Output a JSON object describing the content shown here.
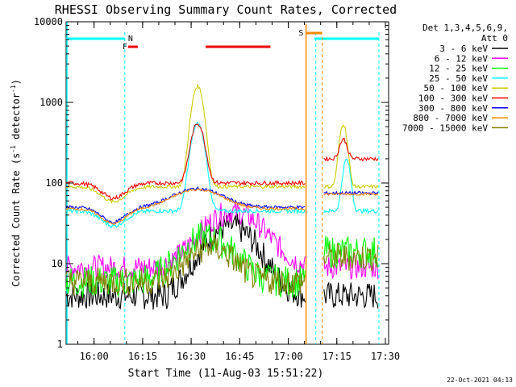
{
  "chart_data": {
    "type": "line",
    "title": "RHESSI Observing Summary Count Rates, Corrected",
    "xlabel": "Start Time (11-Aug-03 15:51:22)",
    "ylabel_main": "Corrected Count Rate (s",
    "ylabel_sup1": "-1",
    "ylabel_mid": " detector",
    "ylabel_sup2": "-1",
    "ylabel_end": ")",
    "y_scale": "log",
    "ylim": [
      1,
      10000
    ],
    "xlim": [
      "15:51:22",
      "17:31:00"
    ],
    "x_tick_labels": [
      "16:00",
      "16:15",
      "16:30",
      "16:45",
      "17:00",
      "17:15",
      "17:30"
    ],
    "y_tick_labels": [
      "1",
      "10",
      "100",
      "1000",
      "10000"
    ],
    "legend_header": [
      "Det 1,3,4,5,6,9,",
      "Att 0"
    ],
    "legend_placement": "right",
    "series": [
      {
        "name": "3 - 6 keV",
        "color": "#000000"
      },
      {
        "name": "6 - 12 keV",
        "color": "#ff00ff"
      },
      {
        "name": "12 - 25 keV",
        "color": "#00ff00"
      },
      {
        "name": "25 - 50 keV",
        "color": "#00ffff"
      },
      {
        "name": "50 - 100 keV",
        "color": "#cccc00"
      },
      {
        "name": "100 - 300 keV",
        "color": "#ee0000"
      },
      {
        "name": "300 - 800 keV",
        "color": "#0000ff"
      },
      {
        "name": "800 - 7000 keV",
        "color": "#ff8800"
      },
      {
        "name": "7000 - 15000 keV",
        "color": "#808000"
      }
    ],
    "flags": [
      {
        "label": "N",
        "color": "#00ffff"
      },
      {
        "label": "F",
        "color": "#ee0000"
      },
      {
        "label": "S",
        "color": "#ff8800"
      }
    ],
    "timestamp": "22-Oct-2021 04:13"
  }
}
